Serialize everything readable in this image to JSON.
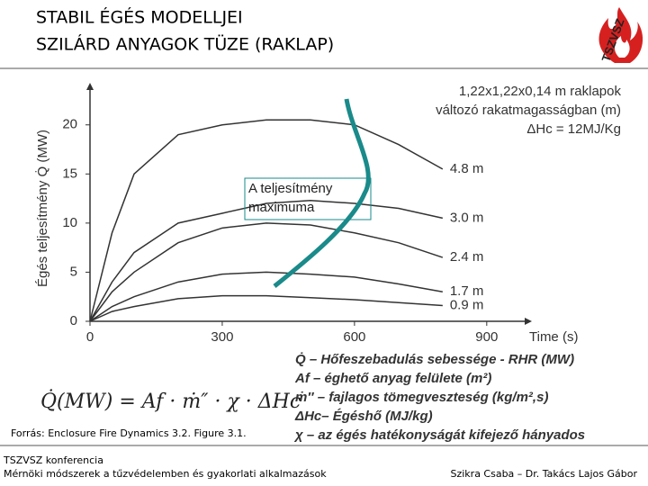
{
  "header": {
    "title_line1": "STABIL ÉGÉS MODELLJEI",
    "title_line2": "SZILÁRD ANYAGOK TÜZE (RAKLAP)",
    "logo": "TSZVSZ"
  },
  "chart_data": {
    "type": "line",
    "y_label": "Égés teljesítmény Q̇ (MW)",
    "x_label": "Time (s)",
    "notes": [
      "1,22x1,22x0,14 m raklapok",
      "változó rakatmagasságban (m)",
      "ΔHc = 12MJ/Kg"
    ],
    "annotation": "A teljesítmény maximuma",
    "x": [
      0,
      50,
      100,
      200,
      300,
      400,
      500,
      600,
      700,
      800
    ],
    "series": [
      {
        "name": "4.8 m",
        "color": "#333333",
        "values": [
          0,
          9,
          15,
          19,
          20,
          20.5,
          20.5,
          20,
          18,
          15.5
        ]
      },
      {
        "name": "3.0 m",
        "color": "#333333",
        "values": [
          0,
          4,
          7,
          10,
          11,
          12,
          12.3,
          12,
          11.5,
          10.5
        ]
      },
      {
        "name": "2.4 m",
        "color": "#333333",
        "values": [
          0,
          3,
          5,
          8,
          9.5,
          10,
          9.8,
          9,
          8,
          6.5
        ]
      },
      {
        "name": "1.7 m",
        "color": "#333333",
        "values": [
          0,
          1.5,
          2.5,
          4,
          4.8,
          5,
          4.8,
          4.5,
          3.8,
          3
        ]
      },
      {
        "name": "0.9 m",
        "color": "#333333",
        "values": [
          0,
          1,
          1.5,
          2.3,
          2.6,
          2.6,
          2.4,
          2.2,
          1.9,
          1.6
        ]
      }
    ],
    "xlim": [
      0,
      980
    ],
    "ylim": [
      0,
      23
    ],
    "xticks": [
      0,
      300,
      600,
      900
    ],
    "yticks": [
      0,
      5,
      10,
      15,
      20
    ]
  },
  "formula": "Q̇(MW) = Af · ṁ″ · χ · ΔHc",
  "legend": [
    "Q̇ – Hőfeszebadulás sebessége - RHR (MW)",
    "Af – éghető anyag felülete (m²)",
    "ṁ″ – fajlagos tömegveszteség (kg/m²,s)",
    "ΔHc– Égéshő (MJ/kg)",
    "χ – az égés hatékonyságát kifejező hányados"
  ],
  "source": "Forrás: Enclosure Fire Dynamics 3.2. Figure 3.1.",
  "footer": {
    "left1": "TSZVSZ konferencia",
    "left2": "Mérnöki módszerek a tűzvédelemben és gyakorlati alkalmazások",
    "right": "Szikra Csaba – Dr. Takács Lajos Gábor"
  }
}
